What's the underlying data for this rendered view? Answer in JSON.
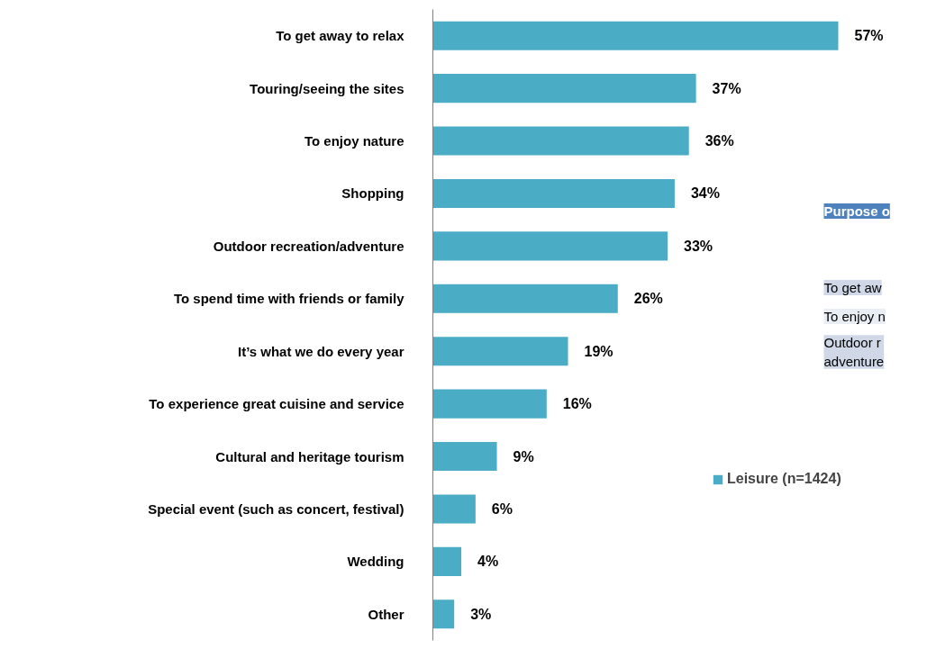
{
  "chart_data": {
    "type": "bar",
    "orientation": "horizontal",
    "categories": [
      "To get away to relax",
      "Touring/seeing the sites",
      "To enjoy nature",
      "Shopping",
      "Outdoor recreation/adventure",
      "To spend time with friends or family",
      "It’s what we do every year",
      "To experience great cuisine and service",
      "Cultural and heritage tourism",
      "Special event (such as concert, festival)",
      "Wedding",
      "Other"
    ],
    "series": [
      {
        "name": "Leisure (n=1424)",
        "color": "#4bacc6",
        "values": [
          57,
          37,
          36,
          34,
          33,
          26,
          19,
          16,
          9,
          6,
          4,
          3
        ],
        "value_labels": [
          "57%",
          "37%",
          "36%",
          "34%",
          "33%",
          "26%",
          "19%",
          "16%",
          "9%",
          "6%",
          "4%",
          "3%"
        ]
      }
    ],
    "legend": "right",
    "grid": false,
    "annotations": [
      "Purpose o",
      "To get aw",
      "To enjoy n",
      "Outdoor r\nadventure"
    ]
  }
}
